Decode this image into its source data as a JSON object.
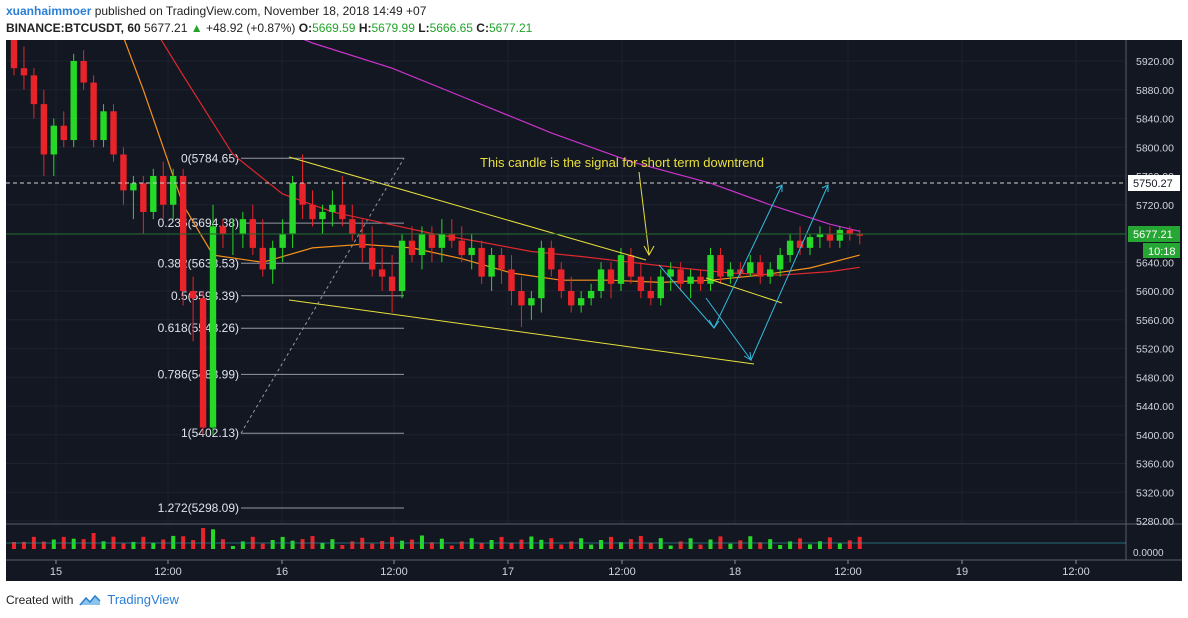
{
  "header": {
    "author": "xuanhaimmoer",
    "published_text": "published on TradingView.com, November 18, 2018 14:49 +07",
    "symbol": "BINANCE:BTCUSDT, 60",
    "last": "5677.21",
    "change_arrow": "▲",
    "change": "+48.92 (+0.87%)",
    "o_label": "O:",
    "o_value": "5669.59",
    "h_label": "H:",
    "h_value": "5679.99",
    "l_label": "L:",
    "l_value": "5666.65",
    "c_label": "C:",
    "c_value": "5677.21"
  },
  "annotation_text": "This candle is the signal for short term downtrend",
  "price_axis": [
    "5920.00",
    "5880.00",
    "5840.00",
    "5800.00",
    "5760.00",
    "5720.00",
    "5680.00",
    "5640.00",
    "5600.00",
    "5560.00",
    "5520.00",
    "5480.00",
    "5440.00",
    "5400.00",
    "5360.00",
    "5320.00",
    "5280.00"
  ],
  "volume_axis_label": "0.0000",
  "time_axis": [
    "15",
    "12:00",
    "16",
    "12:00",
    "17",
    "12:00",
    "18",
    "12:00",
    "19",
    "12:00"
  ],
  "price_tags": {
    "dashed_level": "5750.27",
    "current_price": "5677.21",
    "countdown": "10:18"
  },
  "fib_levels": [
    {
      "label": "0(5784.65)",
      "price": 5784.65
    },
    {
      "label": "0.236(5694.38)",
      "price": 5694.38
    },
    {
      "label": "0.382(5638.53)",
      "price": 5638.53
    },
    {
      "label": "0.5(5593.39)",
      "price": 5593.39
    },
    {
      "label": "0.618(5548.26)",
      "price": 5548.26
    },
    {
      "label": "0.786(5483.99)",
      "price": 5483.99
    },
    {
      "label": "1(5402.13)",
      "price": 5402.13
    },
    {
      "label": "1.272(5298.09)",
      "price": 5298.09
    }
  ],
  "footer": {
    "created_with": "Created with",
    "brand": "TradingView"
  },
  "colors": {
    "background": "#131722",
    "up": "#26d926",
    "down": "#e8232a",
    "ma_orange": "#f7931a",
    "ma_red": "#e0282e",
    "ma_magenta": "#cc33cc",
    "trendline": "#e8e03a",
    "arrows": "#33bbdd",
    "fib": "#9598a1"
  },
  "chart_data": {
    "type": "candlestick",
    "symbol": "BINANCE:BTCUSDT",
    "interval": "60",
    "ylim": [
      5250,
      5950
    ],
    "dashed_level": 5750.27,
    "current_price": 5677.21,
    "candles": [
      [
        5990,
        5995,
        5900,
        5910
      ],
      [
        5910,
        5940,
        5880,
        5900
      ],
      [
        5900,
        5910,
        5840,
        5860
      ],
      [
        5860,
        5880,
        5760,
        5790
      ],
      [
        5790,
        5840,
        5760,
        5830
      ],
      [
        5830,
        5850,
        5800,
        5810
      ],
      [
        5810,
        5930,
        5800,
        5920
      ],
      [
        5920,
        5935,
        5880,
        5890
      ],
      [
        5890,
        5900,
        5800,
        5810
      ],
      [
        5810,
        5860,
        5800,
        5850
      ],
      [
        5850,
        5860,
        5780,
        5790
      ],
      [
        5790,
        5800,
        5720,
        5740
      ],
      [
        5740,
        5760,
        5700,
        5750
      ],
      [
        5750,
        5760,
        5680,
        5710
      ],
      [
        5710,
        5770,
        5700,
        5760
      ],
      [
        5760,
        5780,
        5700,
        5720
      ],
      [
        5720,
        5770,
        5700,
        5760
      ],
      [
        5760,
        5770,
        5580,
        5600
      ],
      [
        5600,
        5620,
        5530,
        5590
      ],
      [
        5590,
        5600,
        5400,
        5410
      ],
      [
        5410,
        5720,
        5400,
        5690
      ],
      [
        5690,
        5700,
        5660,
        5680
      ],
      [
        5680,
        5700,
        5650,
        5680
      ],
      [
        5680,
        5710,
        5660,
        5700
      ],
      [
        5700,
        5720,
        5650,
        5660
      ],
      [
        5660,
        5700,
        5620,
        5630
      ],
      [
        5630,
        5670,
        5610,
        5660
      ],
      [
        5660,
        5700,
        5640,
        5680
      ],
      [
        5680,
        5760,
        5660,
        5750
      ],
      [
        5750,
        5790,
        5700,
        5720
      ],
      [
        5720,
        5740,
        5690,
        5700
      ],
      [
        5700,
        5720,
        5680,
        5710
      ],
      [
        5710,
        5740,
        5690,
        5720
      ],
      [
        5720,
        5760,
        5690,
        5700
      ],
      [
        5700,
        5720,
        5670,
        5680
      ],
      [
        5680,
        5700,
        5640,
        5660
      ],
      [
        5660,
        5690,
        5620,
        5630
      ],
      [
        5630,
        5660,
        5600,
        5620
      ],
      [
        5620,
        5650,
        5570,
        5600
      ],
      [
        5600,
        5680,
        5590,
        5670
      ],
      [
        5670,
        5690,
        5640,
        5650
      ],
      [
        5650,
        5690,
        5630,
        5680
      ],
      [
        5680,
        5690,
        5640,
        5660
      ],
      [
        5660,
        5700,
        5640,
        5680
      ],
      [
        5680,
        5700,
        5660,
        5670
      ],
      [
        5670,
        5690,
        5640,
        5650
      ],
      [
        5650,
        5680,
        5630,
        5660
      ],
      [
        5660,
        5670,
        5610,
        5620
      ],
      [
        5620,
        5660,
        5600,
        5650
      ],
      [
        5650,
        5660,
        5610,
        5630
      ],
      [
        5630,
        5650,
        5580,
        5600
      ],
      [
        5600,
        5620,
        5550,
        5580
      ],
      [
        5580,
        5600,
        5560,
        5590
      ],
      [
        5590,
        5670,
        5570,
        5660
      ],
      [
        5660,
        5670,
        5620,
        5630
      ],
      [
        5630,
        5640,
        5590,
        5600
      ],
      [
        5600,
        5620,
        5570,
        5580
      ],
      [
        5580,
        5600,
        5570,
        5590
      ],
      [
        5590,
        5610,
        5580,
        5600
      ],
      [
        5600,
        5640,
        5590,
        5630
      ],
      [
        5630,
        5640,
        5590,
        5610
      ],
      [
        5610,
        5660,
        5600,
        5650
      ],
      [
        5650,
        5660,
        5610,
        5620
      ],
      [
        5620,
        5640,
        5590,
        5600
      ],
      [
        5600,
        5620,
        5580,
        5590
      ],
      [
        5590,
        5630,
        5580,
        5620
      ],
      [
        5620,
        5640,
        5600,
        5630
      ],
      [
        5630,
        5640,
        5600,
        5610
      ],
      [
        5610,
        5630,
        5590,
        5620
      ],
      [
        5620,
        5630,
        5600,
        5610
      ],
      [
        5610,
        5660,
        5600,
        5650
      ],
      [
        5650,
        5660,
        5610,
        5620
      ],
      [
        5620,
        5640,
        5610,
        5630
      ],
      [
        5630,
        5640,
        5620,
        5625
      ],
      [
        5625,
        5650,
        5620,
        5640
      ],
      [
        5640,
        5650,
        5610,
        5620
      ],
      [
        5620,
        5640,
        5610,
        5630
      ],
      [
        5630,
        5660,
        5620,
        5650
      ],
      [
        5650,
        5680,
        5640,
        5670
      ],
      [
        5670,
        5690,
        5650,
        5660
      ],
      [
        5660,
        5680,
        5650,
        5675
      ],
      [
        5675,
        5690,
        5660,
        5680
      ],
      [
        5680,
        5690,
        5660,
        5670
      ],
      [
        5670,
        5690,
        5660,
        5685
      ],
      [
        5685,
        5690,
        5670,
        5680
      ],
      [
        5680,
        5685,
        5665,
        5677
      ]
    ],
    "moving_averages": [
      {
        "color": "#f7931a",
        "points": [
          [
            10,
            5990
          ],
          [
            13,
            5880
          ],
          [
            17,
            5720
          ],
          [
            20,
            5650
          ],
          [
            25,
            5640
          ],
          [
            30,
            5660
          ],
          [
            35,
            5665
          ],
          [
            40,
            5660
          ],
          [
            45,
            5645
          ],
          [
            50,
            5625
          ],
          [
            55,
            5615
          ],
          [
            60,
            5615
          ],
          [
            65,
            5612
          ],
          [
            70,
            5615
          ],
          [
            75,
            5622
          ],
          [
            80,
            5632
          ],
          [
            85,
            5650
          ]
        ]
      },
      {
        "color": "#e0282e",
        "points": [
          [
            13,
            5990
          ],
          [
            17,
            5900
          ],
          [
            22,
            5790
          ],
          [
            27,
            5735
          ],
          [
            32,
            5710
          ],
          [
            37,
            5695
          ],
          [
            42,
            5680
          ],
          [
            47,
            5668
          ],
          [
            52,
            5655
          ],
          [
            57,
            5648
          ],
          [
            62,
            5640
          ],
          [
            67,
            5632
          ],
          [
            72,
            5625
          ],
          [
            77,
            5622
          ],
          [
            82,
            5627
          ],
          [
            85,
            5633
          ]
        ]
      },
      {
        "color": "#cc33cc",
        "points": [
          [
            22,
            5990
          ],
          [
            30,
            5945
          ],
          [
            38,
            5910
          ],
          [
            46,
            5865
          ],
          [
            54,
            5820
          ],
          [
            62,
            5780
          ],
          [
            70,
            5750
          ],
          [
            76,
            5720
          ],
          [
            82,
            5693
          ],
          [
            85,
            5683
          ]
        ]
      }
    ],
    "volume": {
      "ylabel": "0.0000"
    }
  }
}
